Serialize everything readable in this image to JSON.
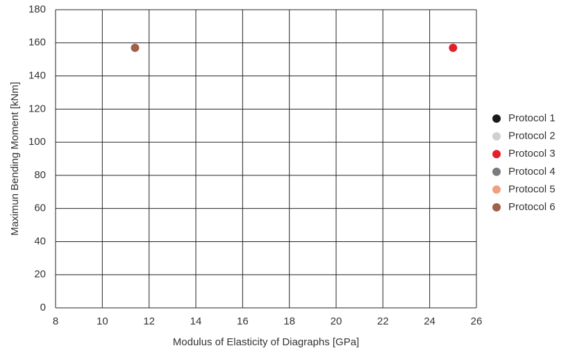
{
  "chart_data": {
    "type": "scatter",
    "x_label": "Modulus of Elasticity of Diagraphs [GPa]",
    "y_label": "Maximun Bending Moment [kNm]",
    "xlim": [
      8,
      26
    ],
    "xticks": [
      8,
      10,
      12,
      14,
      16,
      18,
      20,
      22,
      24,
      26
    ],
    "ylim": [
      0,
      180
    ],
    "yticks": [
      0,
      20,
      40,
      60,
      80,
      100,
      120,
      140,
      160,
      180
    ],
    "grid": true,
    "legend": "right",
    "series": [
      {
        "name": "Protocol 1",
        "color": "#1a1a1a",
        "x": [],
        "values": []
      },
      {
        "name": "Protocol 2",
        "color": "#d0d0d0",
        "x": [],
        "values": []
      },
      {
        "name": "Protocol 3",
        "color": "#e3202a",
        "x": [
          25.0
        ],
        "values": [
          157
        ]
      },
      {
        "name": "Protocol 4",
        "color": "#7a7a80",
        "x": [],
        "values": []
      },
      {
        "name": "Protocol 5",
        "color": "#f0a080",
        "x": [],
        "values": []
      },
      {
        "name": "Protocol 6",
        "color": "#a0604a",
        "x": [
          11.4
        ],
        "values": [
          157
        ]
      }
    ]
  }
}
